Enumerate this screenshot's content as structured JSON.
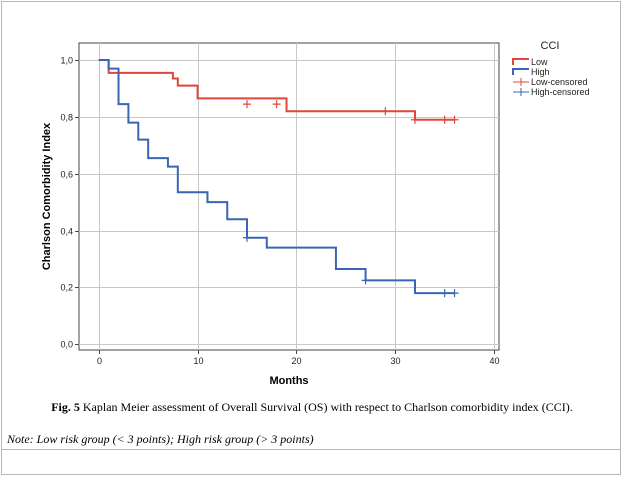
{
  "chart_data": {
    "type": "line",
    "title": "",
    "xlabel": "Months",
    "ylabel": "Charlson Comorbidity Index",
    "xlim": [
      -2,
      40.5
    ],
    "ylim": [
      -0.02,
      1.06
    ],
    "x_ticks": [
      0,
      10,
      20,
      30,
      40
    ],
    "x_tick_labels": [
      "0",
      "10",
      "20",
      "30",
      "40"
    ],
    "y_ticks": [
      0,
      0.2,
      0.4,
      0.6,
      0.8,
      1.0
    ],
    "y_tick_labels": [
      "0,0",
      "0,2",
      "0,4",
      "0,6",
      "0,8",
      "1,0"
    ],
    "grid": true,
    "legend_placement": "right",
    "legend_title": "CCI",
    "series": [
      {
        "name": "Low",
        "color": "#e0463c",
        "step": true,
        "x": [
          0,
          1,
          7,
          7.5,
          8,
          10,
          19,
          32,
          36
        ],
        "y": [
          1.0,
          0.955,
          0.955,
          0.935,
          0.91,
          0.865,
          0.82,
          0.79,
          0.79
        ]
      },
      {
        "name": "High",
        "color": "#3b64b4",
        "step": true,
        "x": [
          0,
          1,
          2,
          3,
          4,
          5,
          7,
          8,
          11,
          13,
          15,
          17,
          24,
          27,
          32,
          36
        ],
        "y": [
          1.0,
          0.97,
          0.845,
          0.78,
          0.72,
          0.655,
          0.625,
          0.535,
          0.5,
          0.44,
          0.375,
          0.34,
          0.265,
          0.225,
          0.18,
          0.18
        ]
      }
    ],
    "censored": [
      {
        "name": "Low-censored",
        "color": "#e0463c",
        "x": [
          15,
          18,
          29,
          32,
          35,
          36
        ],
        "y": [
          0.845,
          0.845,
          0.82,
          0.79,
          0.79,
          0.79
        ]
      },
      {
        "name": "High-censored",
        "color": "#3b64b4",
        "x": [
          15,
          27,
          35,
          36
        ],
        "y": [
          0.375,
          0.225,
          0.18,
          0.18
        ]
      }
    ]
  },
  "caption": {
    "label": "Fig. 5",
    "text": " Kaplan Meier assessment of Overall Survival (OS) with respect to Charlson comorbidity index (CCI)."
  },
  "note": "Note: Low risk group (< 3 points); High risk group (> 3 points)"
}
